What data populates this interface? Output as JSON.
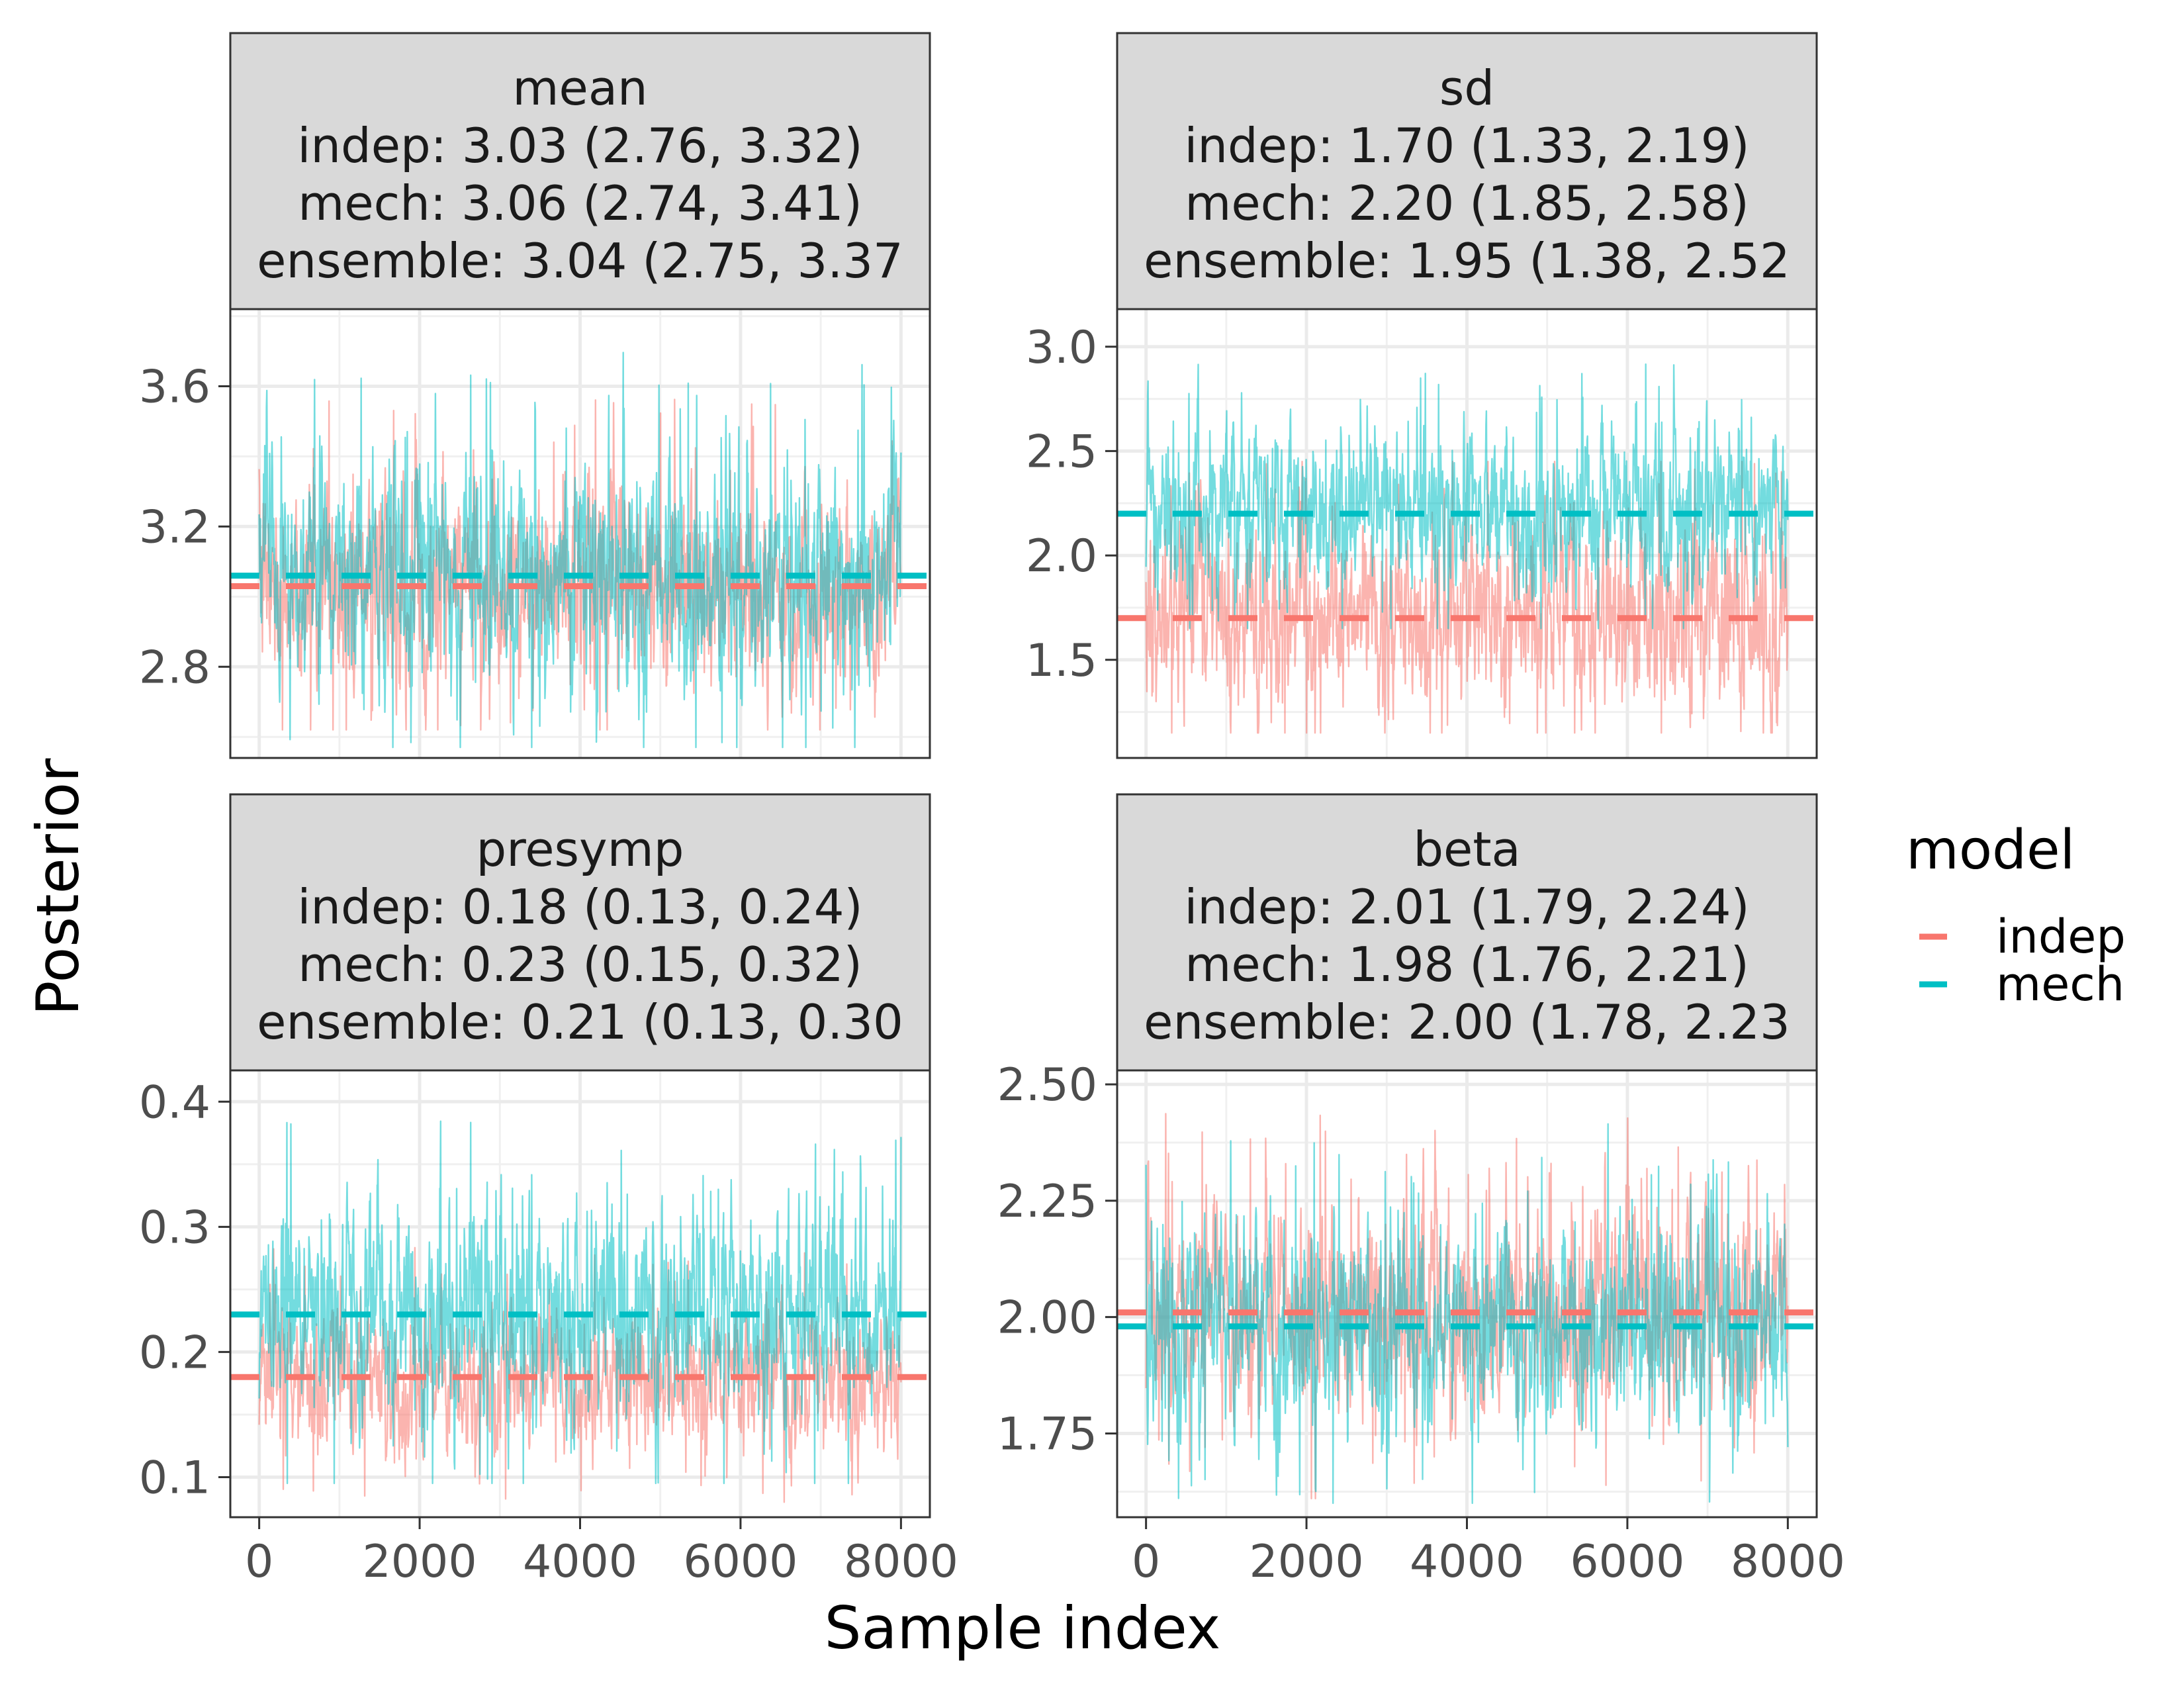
{
  "xlabel": "Sample index",
  "ylabel": "Posterior",
  "legend": {
    "title": "model",
    "entries": [
      {
        "name": "indep",
        "color": "#F8766D"
      },
      {
        "name": "mech",
        "color": "#00BFC4"
      }
    ]
  },
  "chart_data": [
    {
      "type": "line",
      "param": "mean",
      "strip": [
        "mean",
        "indep: 3.03 (2.76, 3.32)",
        "mech: 3.06 (2.74, 3.41)",
        "ensemble: 3.04 (2.75, 3.37"
      ],
      "xlim": [
        0,
        8000
      ],
      "ylim": [
        2.54,
        3.82
      ],
      "yticks": [
        2.8,
        3.2,
        3.6
      ],
      "ytick_labels": [
        "2.8",
        "3.2",
        "3.6"
      ],
      "show_xticks": false,
      "series": [
        {
          "name": "indep",
          "color": "#F8766D",
          "mean": 3.03,
          "sd": 0.145,
          "min": 2.62,
          "max": 3.65
        },
        {
          "name": "mech",
          "color": "#00BFC4",
          "mean": 3.06,
          "sd": 0.17,
          "min": 2.57,
          "max": 3.79
        }
      ]
    },
    {
      "type": "line",
      "param": "sd",
      "strip": [
        "sd",
        "indep: 1.70 (1.33, 2.19)",
        "mech: 2.20 (1.85, 2.58)",
        "ensemble: 1.95 (1.38, 2.52"
      ],
      "xlim": [
        0,
        8000
      ],
      "ylim": [
        1.03,
        3.18
      ],
      "yticks": [
        1.5,
        2.0,
        2.5,
        3.0
      ],
      "ytick_labels": [
        "1.5",
        "2.0",
        "2.5",
        "3.0"
      ],
      "show_xticks": false,
      "series": [
        {
          "name": "indep",
          "color": "#F8766D",
          "mean": 1.7,
          "sd": 0.22,
          "min": 1.15,
          "max": 2.45
        },
        {
          "name": "mech",
          "color": "#00BFC4",
          "mean": 2.2,
          "sd": 0.19,
          "min": 1.65,
          "max": 3.11
        }
      ]
    },
    {
      "type": "line",
      "param": "presymp",
      "strip": [
        "presymp",
        "indep: 0.18 (0.13, 0.24)",
        "mech: 0.23 (0.15, 0.32)",
        "ensemble: 0.21 (0.13, 0.30"
      ],
      "xlim": [
        0,
        8000
      ],
      "ylim": [
        0.068,
        0.425
      ],
      "yticks": [
        0.1,
        0.2,
        0.3,
        0.4
      ],
      "ytick_labels": [
        "0.1",
        "0.2",
        "0.3",
        "0.4"
      ],
      "show_xticks": true,
      "xticks": [
        0,
        2000,
        4000,
        6000,
        8000
      ],
      "xtick_labels": [
        "0",
        "2000",
        "4000",
        "6000",
        "8000"
      ],
      "series": [
        {
          "name": "indep",
          "color": "#F8766D",
          "mean": 0.18,
          "sd": 0.028,
          "min": 0.08,
          "max": 0.3
        },
        {
          "name": "mech",
          "color": "#00BFC4",
          "mean": 0.23,
          "sd": 0.043,
          "min": 0.095,
          "max": 0.41
        }
      ]
    },
    {
      "type": "line",
      "param": "beta",
      "strip": [
        "beta",
        "indep: 2.01 (1.79, 2.24)",
        "mech: 1.98 (1.76, 2.21)",
        "ensemble: 2.00 (1.78, 2.23"
      ],
      "xlim": [
        0,
        8000
      ],
      "ylim": [
        1.57,
        2.53
      ],
      "yticks": [
        1.75,
        2.0,
        2.25,
        2.5
      ],
      "ytick_labels": [
        "1.75",
        "2.00",
        "2.25",
        "2.50"
      ],
      "show_xticks": true,
      "xticks": [
        0,
        2000,
        4000,
        6000,
        8000
      ],
      "xtick_labels": [
        "0",
        "2000",
        "4000",
        "6000",
        "8000"
      ],
      "series": [
        {
          "name": "indep",
          "color": "#F8766D",
          "mean": 2.01,
          "sd": 0.115,
          "min": 1.61,
          "max": 2.48
        },
        {
          "name": "mech",
          "color": "#00BFC4",
          "mean": 1.98,
          "sd": 0.115,
          "min": 1.6,
          "max": 2.42
        }
      ]
    }
  ]
}
